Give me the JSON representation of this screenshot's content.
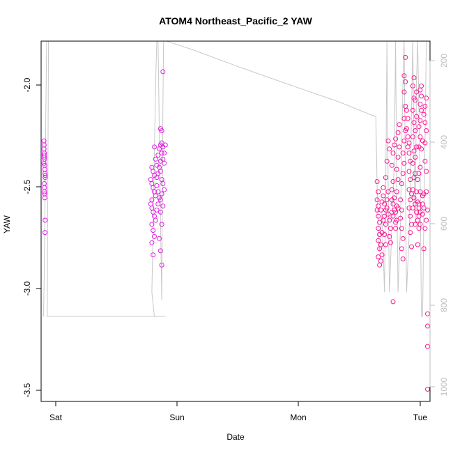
{
  "chart_data": {
    "type": "scatter",
    "title": "ATOM4 Northeast_Pacific_2 YAW",
    "xlabel": "Date",
    "ylabel": "YAW",
    "x_ticks": [
      "Sat",
      "Sun",
      "Mon",
      "Tue"
    ],
    "y_ticks": [
      "-3.5",
      "-3.0",
      "-2.5",
      "-2.0"
    ],
    "right_ticks": [
      "200",
      "400",
      "600",
      "800",
      "1000"
    ],
    "xlim": [
      -0.02,
      3.14
    ],
    "ylim": [
      -3.55,
      -1.78
    ],
    "right_axis": {
      "ylim": [
        1030,
        140
      ],
      "reversed": true
    },
    "colors": {
      "points": "#ff1493",
      "points_early": "#e020e0",
      "line": "#c8c8c8",
      "axis": "#000000",
      "right_axis": "#bdbdbd"
    },
    "series": [
      {
        "kind": "line",
        "axis": "right",
        "points": [
          [
            0.0,
            820
          ],
          [
            0.005,
            720
          ],
          [
            0.012,
            520
          ],
          [
            0.018,
            330
          ],
          [
            0.025,
            140
          ],
          [
            0.04,
            140
          ],
          [
            0.03,
            820
          ],
          [
            0.2,
            820
          ],
          [
            0.5,
            820
          ],
          [
            0.9,
            820
          ],
          [
            0.99,
            820
          ],
          [
            0.9,
            820
          ],
          [
            0.88,
            760
          ],
          [
            0.89,
            600
          ],
          [
            0.9,
            420
          ],
          [
            0.91,
            250
          ],
          [
            0.92,
            140
          ],
          [
            0.93,
            140
          ],
          [
            0.94,
            350
          ],
          [
            0.95,
            580
          ],
          [
            0.96,
            780
          ],
          [
            0.965,
            520
          ],
          [
            0.97,
            300
          ],
          [
            0.975,
            140
          ],
          [
            1.0,
            140
          ],
          [
            1.2,
            160
          ],
          [
            1.6,
            205
          ],
          [
            2.0,
            248
          ],
          [
            2.4,
            290
          ],
          [
            2.7,
            327
          ],
          [
            2.71,
            500
          ],
          [
            2.72,
            620
          ],
          [
            2.73,
            660
          ],
          [
            2.75,
            560
          ],
          [
            2.77,
            760
          ],
          [
            2.78,
            520
          ],
          [
            2.79,
            140
          ],
          [
            2.8,
            500
          ],
          [
            2.81,
            760
          ],
          [
            2.83,
            600
          ],
          [
            2.85,
            430
          ],
          [
            2.86,
            140
          ],
          [
            2.87,
            500
          ],
          [
            2.88,
            760
          ],
          [
            2.9,
            600
          ],
          [
            2.91,
            400
          ],
          [
            2.92,
            240
          ],
          [
            2.93,
            140
          ],
          [
            2.94,
            500
          ],
          [
            2.95,
            760
          ],
          [
            2.97,
            620
          ],
          [
            2.98,
            480
          ],
          [
            2.99,
            310
          ],
          [
            3.0,
            140
          ],
          [
            3.01,
            420
          ],
          [
            3.02,
            590
          ],
          [
            3.03,
            240
          ],
          [
            3.04,
            140
          ],
          [
            3.06,
            480
          ],
          [
            3.07,
            820
          ],
          [
            3.08,
            820
          ],
          [
            3.09,
            560
          ],
          [
            3.1,
            380
          ],
          [
            3.11,
            140
          ],
          [
            3.14,
            140
          ]
        ]
      },
      {
        "kind": "points",
        "axis": "left",
        "points": [
          [
            0.003,
            -2.27
          ],
          [
            0.005,
            -2.29
          ],
          [
            0.004,
            -2.31
          ],
          [
            0.006,
            -2.33
          ],
          [
            0.005,
            -2.34
          ],
          [
            0.007,
            -2.35
          ],
          [
            0.008,
            -2.36
          ],
          [
            0.009,
            -2.39
          ],
          [
            0.01,
            -2.41
          ],
          [
            0.011,
            -2.43
          ],
          [
            0.012,
            -2.45
          ],
          [
            0.006,
            -2.48
          ],
          [
            0.007,
            -2.5
          ],
          [
            0.008,
            -2.52
          ],
          [
            0.009,
            -2.53
          ],
          [
            0.01,
            -2.55
          ],
          [
            0.012,
            -2.66
          ],
          [
            0.011,
            -2.72
          ],
          [
            0.013,
            -2.44
          ],
          [
            0.004,
            -2.38
          ],
          [
            0.88,
            -2.4
          ],
          [
            0.89,
            -2.42
          ],
          [
            0.9,
            -2.44
          ],
          [
            0.87,
            -2.46
          ],
          [
            0.88,
            -2.48
          ],
          [
            0.89,
            -2.5
          ],
          [
            0.9,
            -2.52
          ],
          [
            0.91,
            -2.54
          ],
          [
            0.88,
            -2.56
          ],
          [
            0.87,
            -2.58
          ],
          [
            0.88,
            -2.6
          ],
          [
            0.89,
            -2.62
          ],
          [
            0.9,
            -2.64
          ],
          [
            0.91,
            -2.66
          ],
          [
            0.88,
            -2.68
          ],
          [
            0.89,
            -2.71
          ],
          [
            0.9,
            -2.74
          ],
          [
            0.88,
            -2.77
          ],
          [
            0.89,
            -2.83
          ],
          [
            0.92,
            -2.45
          ],
          [
            0.92,
            -2.49
          ],
          [
            0.93,
            -2.52
          ],
          [
            0.94,
            -2.55
          ],
          [
            0.93,
            -2.58
          ],
          [
            0.92,
            -2.61
          ],
          [
            0.94,
            -2.4
          ],
          [
            0.95,
            -2.37
          ],
          [
            0.93,
            -2.34
          ],
          [
            0.94,
            -2.31
          ],
          [
            0.95,
            -2.29
          ],
          [
            0.96,
            -2.28
          ],
          [
            0.97,
            -2.3
          ],
          [
            0.96,
            -2.33
          ],
          [
            0.97,
            -2.36
          ],
          [
            0.98,
            -2.38
          ],
          [
            0.95,
            -2.42
          ],
          [
            0.96,
            -2.46
          ],
          [
            0.97,
            -2.48
          ],
          [
            0.98,
            -2.51
          ],
          [
            0.96,
            -2.53
          ],
          [
            0.95,
            -2.56
          ],
          [
            0.97,
            -2.59
          ],
          [
            0.95,
            -2.62
          ],
          [
            0.96,
            -2.68
          ],
          [
            0.94,
            -2.75
          ],
          [
            0.95,
            -2.81
          ],
          [
            0.96,
            -2.88
          ],
          [
            0.95,
            -2.21
          ],
          [
            0.96,
            -2.22
          ],
          [
            0.97,
            -1.93
          ],
          [
            0.9,
            -2.3
          ],
          [
            0.91,
            -2.36
          ],
          [
            0.92,
            -2.39
          ],
          [
            0.93,
            -2.43
          ],
          [
            0.98,
            -2.33
          ],
          [
            0.99,
            -2.29
          ],
          [
            2.71,
            -2.47
          ],
          [
            2.72,
            -2.52
          ],
          [
            2.71,
            -2.56
          ],
          [
            2.72,
            -2.59
          ],
          [
            2.71,
            -2.61
          ],
          [
            2.72,
            -2.64
          ],
          [
            2.73,
            -2.67
          ],
          [
            2.72,
            -2.7
          ],
          [
            2.73,
            -2.73
          ],
          [
            2.72,
            -2.76
          ],
          [
            2.73,
            -2.8
          ],
          [
            2.72,
            -2.84
          ],
          [
            2.73,
            -2.88
          ],
          [
            2.74,
            -2.86
          ],
          [
            2.75,
            -2.83
          ],
          [
            2.74,
            -2.78
          ],
          [
            2.75,
            -2.72
          ],
          [
            2.76,
            -2.66
          ],
          [
            2.74,
            -2.61
          ],
          [
            2.75,
            -2.57
          ],
          [
            2.76,
            -2.54
          ],
          [
            2.77,
            -2.58
          ],
          [
            2.78,
            -2.61
          ],
          [
            2.77,
            -2.64
          ],
          [
            2.78,
            -2.68
          ],
          [
            2.77,
            -2.73
          ],
          [
            2.78,
            -2.78
          ],
          [
            2.76,
            -2.5
          ],
          [
            2.79,
            -2.6
          ],
          [
            2.8,
            -2.63
          ],
          [
            2.79,
            -2.56
          ],
          [
            2.8,
            -2.52
          ],
          [
            2.78,
            -2.45
          ],
          [
            2.79,
            -2.37
          ],
          [
            2.8,
            -2.27
          ],
          [
            2.81,
            -2.31
          ],
          [
            2.81,
            -2.66
          ],
          [
            2.82,
            -2.7
          ],
          [
            2.81,
            -2.74
          ],
          [
            2.82,
            -2.77
          ],
          [
            2.83,
            -2.62
          ],
          [
            2.84,
            -2.58
          ],
          [
            2.83,
            -2.51
          ],
          [
            2.84,
            -2.47
          ],
          [
            2.83,
            -2.39
          ],
          [
            2.84,
            -2.33
          ],
          [
            2.85,
            -2.29
          ],
          [
            2.86,
            -2.26
          ],
          [
            2.85,
            -2.55
          ],
          [
            2.86,
            -2.62
          ],
          [
            2.87,
            -2.66
          ],
          [
            2.86,
            -2.7
          ],
          [
            2.88,
            -2.6
          ],
          [
            2.87,
            -2.52
          ],
          [
            2.88,
            -2.46
          ],
          [
            2.87,
            -2.41
          ],
          [
            2.88,
            -2.35
          ],
          [
            2.89,
            -2.3
          ],
          [
            2.88,
            -2.23
          ],
          [
            2.89,
            -2.19
          ],
          [
            2.9,
            -2.56
          ],
          [
            2.91,
            -2.61
          ],
          [
            2.9,
            -2.65
          ],
          [
            2.91,
            -2.7
          ],
          [
            2.92,
            -2.75
          ],
          [
            2.91,
            -2.8
          ],
          [
            2.92,
            -2.85
          ],
          [
            2.91,
            -2.48
          ],
          [
            2.92,
            -2.43
          ],
          [
            2.93,
            -2.38
          ],
          [
            2.92,
            -2.33
          ],
          [
            2.93,
            -2.27
          ],
          [
            2.94,
            -2.22
          ],
          [
            2.93,
            -2.16
          ],
          [
            2.94,
            -2.1
          ],
          [
            2.93,
            -2.03
          ],
          [
            2.94,
            -1.98
          ],
          [
            2.93,
            -1.95
          ],
          [
            2.94,
            -1.86
          ],
          [
            2.95,
            -2.12
          ],
          [
            2.96,
            -2.16
          ],
          [
            2.95,
            -2.21
          ],
          [
            2.96,
            -2.25
          ],
          [
            2.97,
            -2.28
          ],
          [
            2.96,
            -2.3
          ],
          [
            2.97,
            -2.33
          ],
          [
            2.98,
            -2.37
          ],
          [
            2.97,
            -2.42
          ],
          [
            2.98,
            -2.46
          ],
          [
            2.97,
            -2.51
          ],
          [
            2.98,
            -2.56
          ],
          [
            2.97,
            -2.6
          ],
          [
            2.98,
            -2.64
          ],
          [
            2.99,
            -2.68
          ],
          [
            2.98,
            -2.72
          ],
          [
            2.99,
            -2.79
          ],
          [
            3.0,
            -2.6
          ],
          [
            3.01,
            -2.55
          ],
          [
            3.0,
            -2.51
          ],
          [
            3.01,
            -2.45
          ],
          [
            3.0,
            -2.38
          ],
          [
            3.01,
            -2.32
          ],
          [
            3.0,
            -2.25
          ],
          [
            3.01,
            -2.18
          ],
          [
            3.0,
            -2.12
          ],
          [
            3.01,
            -2.06
          ],
          [
            3.0,
            -2.0
          ],
          [
            3.01,
            -1.96
          ],
          [
            3.02,
            -2.35
          ],
          [
            3.02,
            -2.68
          ],
          [
            3.03,
            -2.62
          ],
          [
            3.02,
            -2.58
          ],
          [
            3.03,
            -2.52
          ],
          [
            3.02,
            -2.43
          ],
          [
            3.03,
            -2.3
          ],
          [
            3.02,
            -2.22
          ],
          [
            3.03,
            -2.15
          ],
          [
            3.02,
            -2.07
          ],
          [
            3.03,
            -2.03
          ],
          [
            3.04,
            -2.46
          ],
          [
            3.04,
            -2.57
          ],
          [
            3.05,
            -2.6
          ],
          [
            3.04,
            -2.66
          ],
          [
            3.05,
            -2.64
          ],
          [
            3.06,
            -2.68
          ],
          [
            3.05,
            -2.7
          ],
          [
            3.06,
            -2.62
          ],
          [
            3.05,
            -2.58
          ],
          [
            3.06,
            -2.52
          ],
          [
            3.05,
            -2.43
          ],
          [
            3.06,
            -2.4
          ],
          [
            3.05,
            -2.3
          ],
          [
            3.06,
            -2.25
          ],
          [
            3.05,
            -2.2
          ],
          [
            3.06,
            -2.17
          ],
          [
            3.07,
            -2.12
          ],
          [
            3.06,
            -2.09
          ],
          [
            3.07,
            -2.05
          ],
          [
            3.06,
            -2.02
          ],
          [
            3.07,
            -2.0
          ],
          [
            3.08,
            -2.27
          ],
          [
            3.07,
            -2.31
          ],
          [
            3.08,
            -2.58
          ],
          [
            3.09,
            -2.6
          ],
          [
            3.08,
            -2.63
          ],
          [
            3.09,
            -2.53
          ],
          [
            3.1,
            -2.7
          ],
          [
            3.11,
            -2.66
          ],
          [
            3.11,
            -2.42
          ],
          [
            3.1,
            -2.37
          ],
          [
            3.11,
            -2.52
          ],
          [
            3.12,
            -2.61
          ],
          [
            3.1,
            -2.28
          ],
          [
            3.11,
            -2.22
          ],
          [
            3.1,
            -2.18
          ],
          [
            3.09,
            -2.14
          ],
          [
            3.1,
            -2.1
          ],
          [
            3.11,
            -2.06
          ],
          [
            2.99,
            -2.53
          ],
          [
            2.84,
            -2.64
          ],
          [
            2.85,
            -2.61
          ],
          [
            2.86,
            -2.67
          ],
          [
            2.87,
            -2.59
          ],
          [
            2.83,
            -2.56
          ],
          [
            2.84,
            -3.06
          ],
          [
            3.12,
            -3.12
          ],
          [
            3.12,
            -3.18
          ],
          [
            3.12,
            -3.28
          ],
          [
            3.12,
            -3.49
          ],
          [
            3.09,
            -2.8
          ],
          [
            3.08,
            -2.54
          ],
          [
            3.04,
            -2.78
          ]
        ]
      }
    ]
  }
}
